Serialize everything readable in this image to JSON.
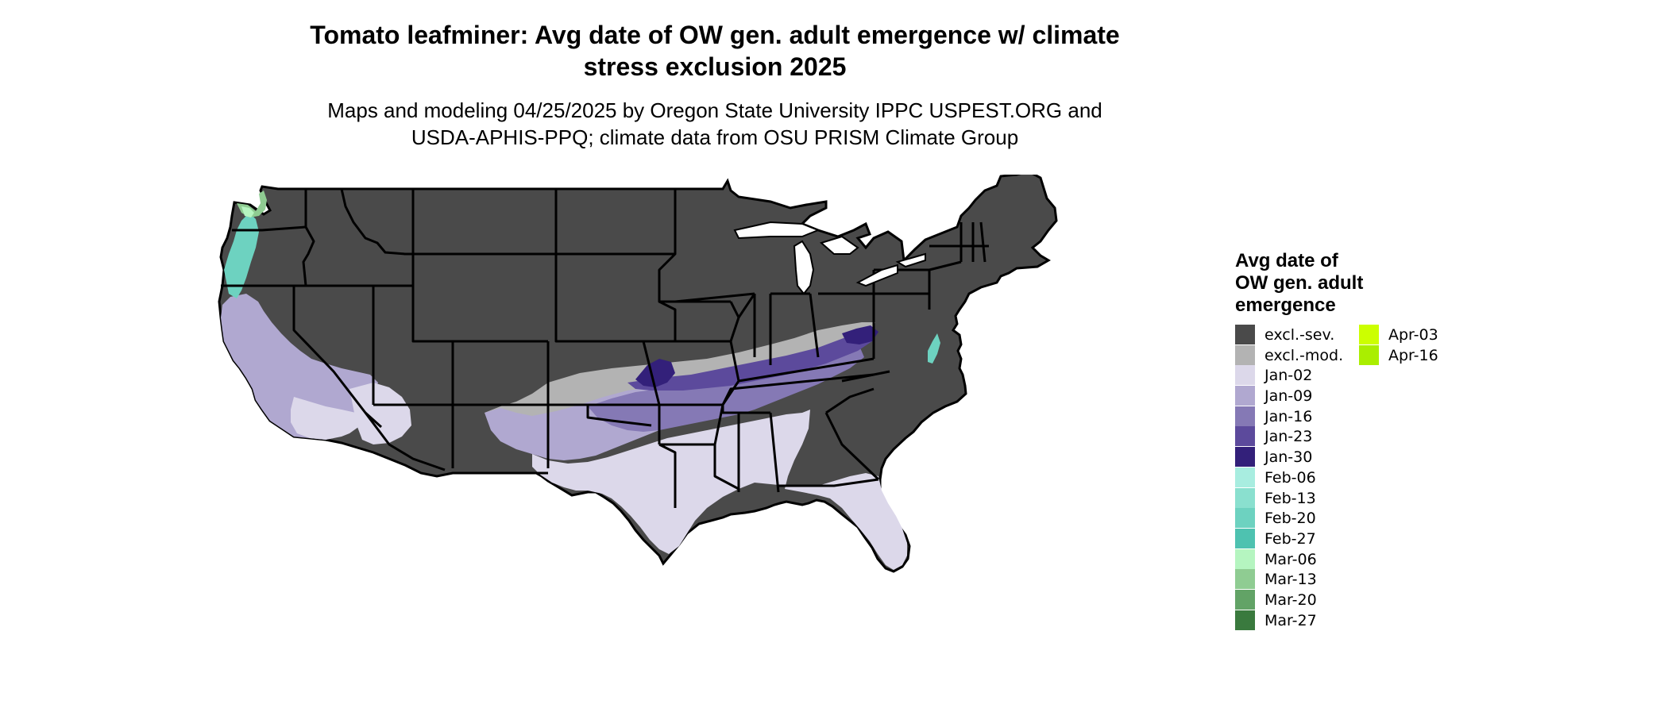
{
  "title": "Tomato leafminer: Avg date of OW gen. adult emergence w/ climate stress exclusion 2025",
  "title_lines": [
    "Tomato leafminer: Avg date of OW gen. adult emergence w/ climate",
    "stress exclusion 2025"
  ],
  "subtitle_lines": [
    "Maps and modeling 04/25/2025 by Oregon State University IPPC USPEST.ORG and",
    "USDA-APHIS-PPQ; climate data from OSU PRISM Climate Group"
  ],
  "legend": {
    "title_lines": [
      "Avg date of",
      "OW gen. adult",
      "emergence"
    ],
    "items": [
      {
        "label": "excl.-sev.",
        "color": "#4a4a4a"
      },
      {
        "label": "excl.-mod.",
        "color": "#b3b3b3"
      },
      {
        "label": "Jan-02",
        "color": "#dcd8ea"
      },
      {
        "label": "Jan-09",
        "color": "#b0a8d0"
      },
      {
        "label": "Jan-16",
        "color": "#8579b5"
      },
      {
        "label": "Jan-23",
        "color": "#5c4a9c"
      },
      {
        "label": "Jan-30",
        "color": "#33207a"
      },
      {
        "label": "Feb-06",
        "color": "#a8ede0"
      },
      {
        "label": "Feb-13",
        "color": "#8ae0cf"
      },
      {
        "label": "Feb-20",
        "color": "#6dd2c0"
      },
      {
        "label": "Feb-27",
        "color": "#4ec2b0"
      },
      {
        "label": "Mar-06",
        "color": "#b5f5c0"
      },
      {
        "label": "Mar-13",
        "color": "#8fcc92"
      },
      {
        "label": "Mar-20",
        "color": "#62a366"
      },
      {
        "label": "Mar-27",
        "color": "#3a7a3e"
      },
      {
        "label": "Apr-03",
        "color": "#ccff00"
      },
      {
        "label": "Apr-16",
        "color": "#aaee00"
      }
    ]
  },
  "colors": {
    "state_border": "#000000",
    "background": "#ffffff"
  }
}
